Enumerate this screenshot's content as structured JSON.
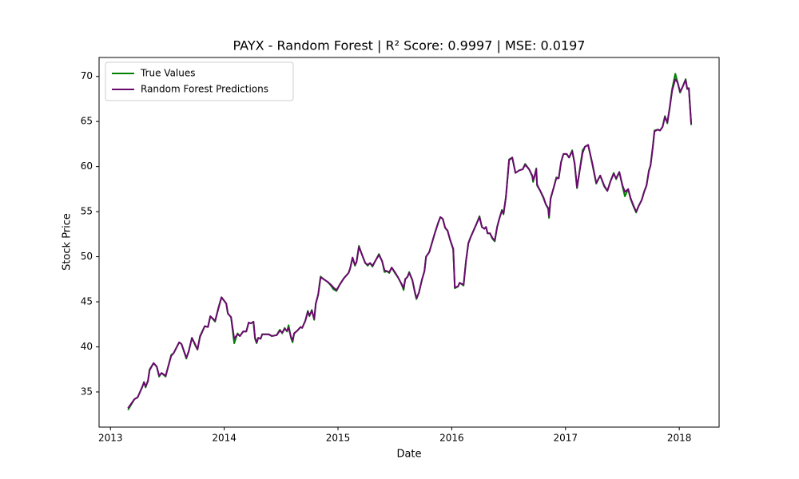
{
  "chart_data": {
    "type": "line",
    "title": "PAYX - Random Forest | R² Score: 0.9997 | MSE: 0.0197",
    "xlabel": "Date",
    "ylabel": "Stock Price",
    "legend": "upper left",
    "grid": false,
    "xlim": [
      2012.9,
      2018.35
    ],
    "xticks": [
      2013,
      2014,
      2015,
      2016,
      2017,
      2018
    ],
    "ylim": [
      31.1,
      72.1
    ],
    "yticks": [
      35,
      40,
      45,
      50,
      55,
      60,
      65,
      70
    ],
    "x": [
      2013.154,
      2013.211,
      2013.239,
      2013.281,
      2013.295,
      2013.309,
      2013.33,
      2013.344,
      2013.379,
      2013.407,
      2013.428,
      2013.449,
      2013.485,
      2013.534,
      2013.555,
      2013.604,
      2013.625,
      2013.667,
      2013.688,
      2013.716,
      2013.744,
      2013.765,
      2013.787,
      2013.829,
      2013.857,
      2013.878,
      2013.92,
      2013.948,
      2013.976,
      2014.018,
      2014.032,
      2014.06,
      2014.088,
      2014.117,
      2014.138,
      2014.166,
      2014.194,
      2014.215,
      2014.236,
      2014.257,
      2014.271,
      2014.285,
      2014.299,
      2014.32,
      2014.334,
      2014.39,
      2014.419,
      2014.461,
      2014.489,
      2014.51,
      2014.531,
      2014.552,
      2014.566,
      2014.587,
      2014.601,
      2014.615,
      2014.643,
      2014.671,
      2014.685,
      2014.713,
      2014.735,
      2014.749,
      2014.77,
      2014.791,
      2014.805,
      2014.826,
      2014.847,
      2014.875,
      2014.91,
      2014.938,
      2014.959,
      2014.987,
      2015.015,
      2015.051,
      2015.093,
      2015.107,
      2015.128,
      2015.149,
      2015.163,
      2015.184,
      2015.212,
      2015.24,
      2015.261,
      2015.282,
      2015.303,
      2015.331,
      2015.36,
      2015.388,
      2015.409,
      2015.43,
      2015.451,
      2015.472,
      2015.5,
      2015.528,
      2015.549,
      2015.563,
      2015.577,
      2015.591,
      2015.612,
      2015.626,
      2015.654,
      2015.676,
      2015.69,
      2015.711,
      2015.739,
      2015.76,
      2015.774,
      2015.802,
      2015.823,
      2015.851,
      2015.879,
      2015.9,
      2015.921,
      2015.942,
      2015.963,
      2015.985,
      2016.013,
      2016.027,
      2016.055,
      2016.069,
      2016.104,
      2016.125,
      2016.146,
      2016.167,
      2016.188,
      2016.216,
      2016.244,
      2016.265,
      2016.287,
      2016.301,
      2016.315,
      2016.336,
      2016.357,
      2016.378,
      2016.399,
      2016.42,
      2016.441,
      2016.455,
      2016.476,
      2016.504,
      2016.532,
      2016.56,
      2016.596,
      2016.624,
      2016.645,
      2016.68,
      2016.708,
      2016.715,
      2016.729,
      2016.743,
      2016.75,
      2016.778,
      2016.806,
      2016.827,
      2016.848,
      2016.855,
      2016.869,
      2016.897,
      2016.919,
      2016.94,
      2016.961,
      2016.982,
      2017.01,
      2017.031,
      2017.059,
      2017.08,
      2017.101,
      2017.129,
      2017.15,
      2017.171,
      2017.199,
      2017.235,
      2017.27,
      2017.305,
      2017.34,
      2017.368,
      2017.396,
      2017.424,
      2017.445,
      2017.473,
      2017.501,
      2017.522,
      2017.551,
      2017.572,
      2017.6,
      2017.621,
      2017.642,
      2017.67,
      2017.691,
      2017.712,
      2017.733,
      2017.747,
      2017.768,
      2017.782,
      2017.81,
      2017.831,
      2017.853,
      2017.874,
      2017.895,
      2017.916,
      2017.937,
      2017.965,
      2017.986,
      2018.007,
      2018.028,
      2018.056,
      2018.07,
      2018.084,
      2018.105
    ],
    "series": [
      {
        "name": "True Values",
        "color": "#008000",
        "values": [
          33.0,
          34.2,
          34.4,
          35.6,
          36.1,
          35.5,
          36.3,
          37.5,
          38.2,
          37.8,
          36.7,
          37.1,
          36.7,
          39.1,
          39.3,
          40.5,
          40.3,
          38.7,
          39.5,
          41.0,
          40.2,
          39.7,
          41.2,
          42.3,
          42.2,
          43.4,
          42.8,
          44.3,
          45.5,
          44.8,
          43.7,
          43.3,
          40.4,
          41.5,
          41.2,
          41.7,
          41.7,
          42.7,
          42.6,
          42.8,
          40.9,
          40.4,
          41.0,
          40.9,
          41.4,
          41.4,
          41.2,
          41.3,
          41.9,
          41.5,
          42.1,
          41.7,
          42.4,
          41.0,
          40.5,
          41.5,
          41.8,
          42.2,
          42.1,
          42.9,
          44.0,
          43.4,
          44.1,
          43.0,
          44.8,
          45.8,
          47.8,
          47.5,
          47.2,
          46.8,
          46.4,
          46.2,
          46.9,
          47.6,
          48.2,
          48.7,
          49.9,
          49.0,
          49.4,
          51.2,
          50.2,
          49.3,
          49.0,
          49.3,
          48.9,
          49.6,
          50.3,
          49.5,
          48.3,
          48.4,
          48.2,
          48.8,
          48.2,
          47.7,
          47.2,
          46.8,
          46.3,
          47.5,
          47.8,
          48.3,
          47.4,
          46.0,
          45.3,
          46.0,
          47.5,
          48.4,
          50.0,
          50.5,
          51.4,
          52.6,
          53.7,
          54.4,
          54.2,
          53.2,
          52.9,
          51.9,
          50.8,
          46.5,
          46.7,
          47.1,
          46.8,
          49.5,
          51.5,
          52.2,
          52.8,
          53.6,
          54.5,
          53.3,
          53.1,
          53.3,
          52.6,
          52.6,
          52.0,
          51.7,
          53.3,
          54.3,
          55.2,
          54.7,
          56.6,
          60.8,
          61.0,
          59.3,
          59.6,
          59.7,
          60.3,
          59.7,
          58.9,
          58.3,
          59.0,
          59.8,
          57.9,
          57.3,
          56.5,
          55.8,
          55.3,
          54.3,
          56.4,
          57.7,
          58.8,
          58.7,
          60.5,
          61.4,
          61.4,
          61.0,
          61.8,
          60.3,
          57.6,
          60.0,
          61.8,
          62.2,
          62.4,
          60.3,
          58.1,
          59.0,
          57.8,
          57.3,
          58.4,
          59.3,
          58.6,
          59.4,
          57.8,
          56.7,
          57.5,
          56.4,
          55.5,
          54.9,
          55.6,
          56.3,
          57.2,
          57.9,
          59.6,
          60.1,
          62.3,
          64.0,
          64.1,
          64.0,
          64.4,
          65.6,
          64.8,
          66.6,
          68.6,
          70.3,
          69.3,
          68.2,
          68.8,
          69.7,
          68.6,
          68.7,
          64.6
        ]
      },
      {
        "name": "Random Forest Predictions",
        "color": "#6a0a6e",
        "values": [
          33.2,
          34.2,
          34.4,
          35.6,
          36.1,
          35.6,
          36.2,
          37.4,
          38.2,
          37.8,
          36.8,
          37.1,
          36.8,
          39.0,
          39.3,
          40.5,
          40.3,
          38.8,
          39.5,
          41.0,
          40.3,
          39.7,
          41.1,
          42.3,
          42.2,
          43.4,
          42.9,
          44.2,
          45.5,
          44.8,
          43.7,
          43.3,
          40.9,
          41.4,
          41.2,
          41.7,
          41.7,
          42.7,
          42.6,
          42.8,
          41.0,
          40.5,
          41.0,
          40.9,
          41.4,
          41.4,
          41.2,
          41.3,
          41.8,
          41.6,
          42.0,
          41.8,
          42.1,
          41.1,
          40.7,
          41.5,
          41.8,
          42.2,
          42.1,
          42.9,
          43.9,
          43.5,
          44.0,
          43.1,
          44.8,
          45.8,
          47.7,
          47.5,
          47.2,
          46.9,
          46.6,
          46.3,
          46.9,
          47.6,
          48.2,
          48.7,
          49.9,
          49.1,
          49.4,
          51.1,
          50.2,
          49.3,
          49.1,
          49.3,
          49.0,
          49.6,
          50.2,
          49.5,
          48.5,
          48.4,
          48.3,
          48.8,
          48.3,
          47.7,
          47.2,
          46.9,
          46.5,
          47.5,
          47.8,
          48.2,
          47.4,
          46.1,
          45.4,
          46.0,
          47.5,
          48.4,
          50.0,
          50.5,
          51.4,
          52.6,
          53.7,
          54.4,
          54.2,
          53.2,
          52.9,
          51.9,
          50.9,
          46.6,
          46.7,
          47.1,
          46.9,
          49.5,
          51.5,
          52.2,
          52.8,
          53.6,
          54.4,
          53.3,
          53.1,
          53.3,
          52.6,
          52.6,
          52.1,
          51.8,
          53.3,
          54.3,
          55.1,
          54.8,
          56.6,
          60.7,
          61.0,
          59.3,
          59.6,
          59.7,
          60.2,
          59.7,
          59.0,
          58.5,
          59.0,
          59.7,
          58.0,
          57.3,
          56.6,
          55.8,
          55.4,
          54.5,
          56.5,
          57.7,
          58.7,
          58.7,
          60.5,
          61.4,
          61.4,
          61.0,
          61.7,
          60.4,
          57.7,
          59.9,
          61.5,
          62.2,
          62.4,
          60.4,
          58.2,
          59.0,
          57.9,
          57.3,
          58.4,
          59.2,
          58.7,
          59.4,
          57.9,
          57.2,
          57.5,
          56.5,
          55.6,
          55.0,
          55.6,
          56.3,
          57.2,
          57.9,
          59.5,
          60.1,
          62.2,
          63.9,
          64.1,
          64.0,
          64.4,
          65.5,
          64.9,
          66.5,
          68.4,
          69.7,
          69.3,
          68.3,
          68.8,
          69.6,
          68.6,
          68.7,
          64.7
        ]
      }
    ]
  }
}
